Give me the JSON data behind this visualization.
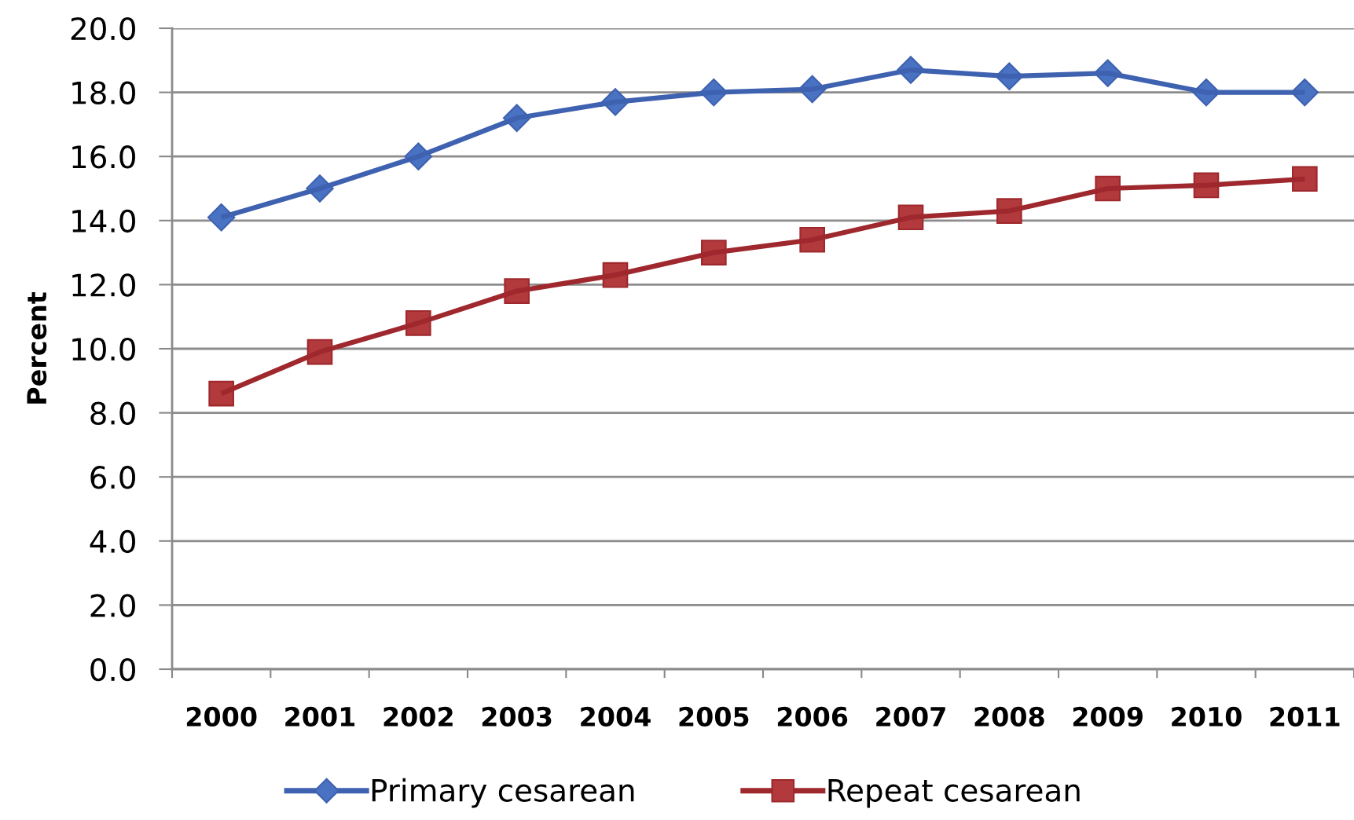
{
  "chart_data": {
    "type": "line",
    "ylabel": "Percent",
    "categories": [
      "2000",
      "2001",
      "2002",
      "2003",
      "2004",
      "2005",
      "2006",
      "2007",
      "2008",
      "2009",
      "2010",
      "2011"
    ],
    "series": [
      {
        "name": "Primary cesarean",
        "color": "#3e61b0",
        "marker": "diamond",
        "colors": [
          "#4a72c2",
          "#4a72c2",
          "#4a72c2",
          "#4a72c2",
          "#4a72c2",
          "#4a72c2",
          "#4a72c2",
          "#4a72c2",
          "#4a72c2",
          "#4a72c2",
          "#4a72c2",
          "#4a72c2"
        ],
        "values": [
          14.1,
          15.0,
          16.0,
          17.2,
          17.7,
          18.0,
          18.1,
          18.7,
          18.5,
          18.6,
          18.0,
          18.0
        ]
      },
      {
        "name": "Repeat cesarean",
        "color": "#9e282d",
        "marker": "square",
        "colors": [
          "#b23a3c",
          "#b23a3c",
          "#b23a3c",
          "#b23a3c",
          "#b23a3c",
          "#b23a3c",
          "#b23a3c",
          "#b23a3c",
          "#b23a3c",
          "#b23a3c",
          "#b23a3c",
          "#b23a3c"
        ],
        "values": [
          8.6,
          9.9,
          10.8,
          11.8,
          12.3,
          13.0,
          13.4,
          14.1,
          14.3,
          15.0,
          15.1,
          15.3
        ]
      }
    ],
    "ylim": [
      0,
      20
    ],
    "yticks": [
      {
        "value": 0,
        "label": "0.0"
      },
      {
        "value": 2,
        "label": "2.0"
      },
      {
        "value": 4,
        "label": "4.0"
      },
      {
        "value": 6,
        "label": "6.0"
      },
      {
        "value": 8,
        "label": "8.0"
      },
      {
        "value": 10,
        "label": "10.0"
      },
      {
        "value": 12,
        "label": "12.0"
      },
      {
        "value": 14,
        "label": "14.0"
      },
      {
        "value": 16,
        "label": "16.0"
      },
      {
        "value": 18,
        "label": "18.0"
      },
      {
        "value": 20,
        "label": "20.0"
      }
    ],
    "grid": "y",
    "legend": "bottom",
    "line_style": "solid"
  }
}
